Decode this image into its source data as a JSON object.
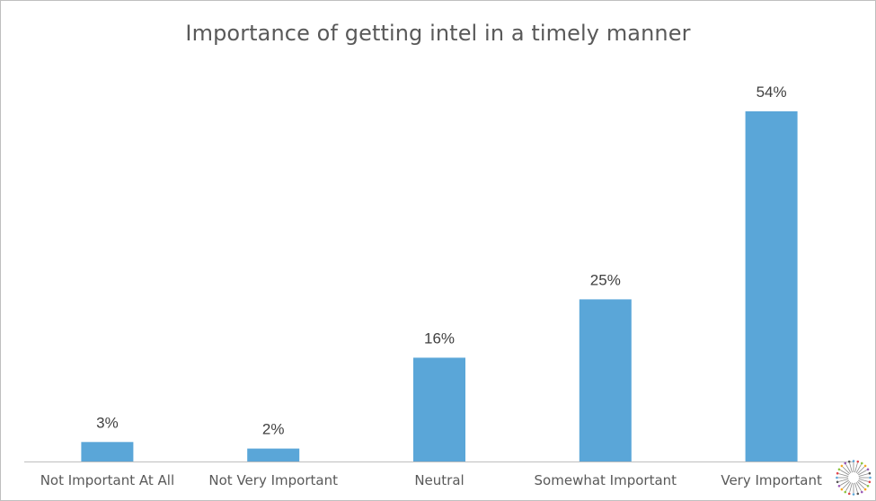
{
  "chart_data": {
    "type": "bar",
    "title": "Importance of getting intel in a timely manner",
    "categories": [
      "Not Important At All",
      "Not Very Important",
      "Neutral",
      "Somewhat Important",
      "Very Important"
    ],
    "values": [
      3,
      2,
      16,
      25,
      54
    ],
    "value_labels": [
      "3%",
      "2%",
      "16%",
      "25%",
      "54%"
    ],
    "unit": "%",
    "ylim": [
      0,
      60
    ],
    "grid": false,
    "legend": "none",
    "bar_color": "#5aa6d8",
    "axis_color": "#bfbfbf"
  },
  "logo": {
    "icon": "starburst-logo-icon",
    "colors": [
      "#5aa6d8",
      "#e0474c",
      "#8cc63f",
      "#f6a623",
      "#9b59b6",
      "#555555"
    ]
  }
}
